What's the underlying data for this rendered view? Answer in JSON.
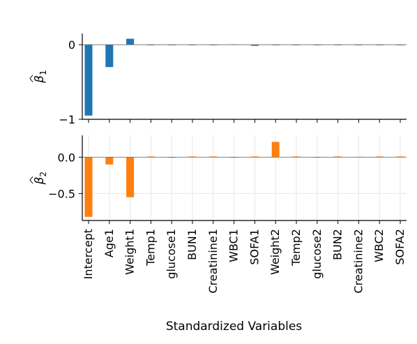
{
  "chart_data": [
    {
      "type": "bar",
      "panel": "top",
      "ylabel_symbol": "β",
      "ylabel_subscript": "1",
      "ylim": [
        -1.0,
        0.15
      ],
      "yticks": [
        0,
        -1
      ],
      "ytick_labels": [
        "0",
        "−1"
      ],
      "grid": false,
      "color": "#1f77b4",
      "categories": [
        "Intercept",
        "Age1",
        "Weight1",
        "Temp1",
        "glucose1",
        "BUN1",
        "Creatinine1",
        "WBC1",
        "SOFA1",
        "Weight2",
        "Temp2",
        "glucose2",
        "BUN2",
        "Creatinine2",
        "WBC2",
        "SOFA2"
      ],
      "values": [
        -0.95,
        -0.3,
        0.08,
        0,
        0,
        0,
        0,
        0.005,
        -0.015,
        0,
        0,
        0,
        0,
        0,
        0,
        0
      ]
    },
    {
      "type": "bar",
      "panel": "bottom",
      "ylabel_symbol": "β",
      "ylabel_subscript": "2",
      "ylim": [
        -0.87,
        0.3
      ],
      "yticks": [
        0.0,
        -0.5
      ],
      "ytick_labels": [
        "0.0",
        "−0.5"
      ],
      "grid": true,
      "color": "#ff7f0e",
      "xlabel": "Standardized Variables",
      "categories": [
        "Intercept",
        "Age1",
        "Weight1",
        "Temp1",
        "glucose1",
        "BUN1",
        "Creatinine1",
        "WBC1",
        "SOFA1",
        "Weight2",
        "Temp2",
        "glucose2",
        "BUN2",
        "Creatinine2",
        "WBC2",
        "SOFA2"
      ],
      "values": [
        -0.82,
        -0.1,
        -0.55,
        0.01,
        0,
        0.01,
        0.01,
        0,
        0.01,
        0.21,
        0.01,
        0,
        0.01,
        0.005,
        0.01,
        0.01
      ]
    }
  ]
}
